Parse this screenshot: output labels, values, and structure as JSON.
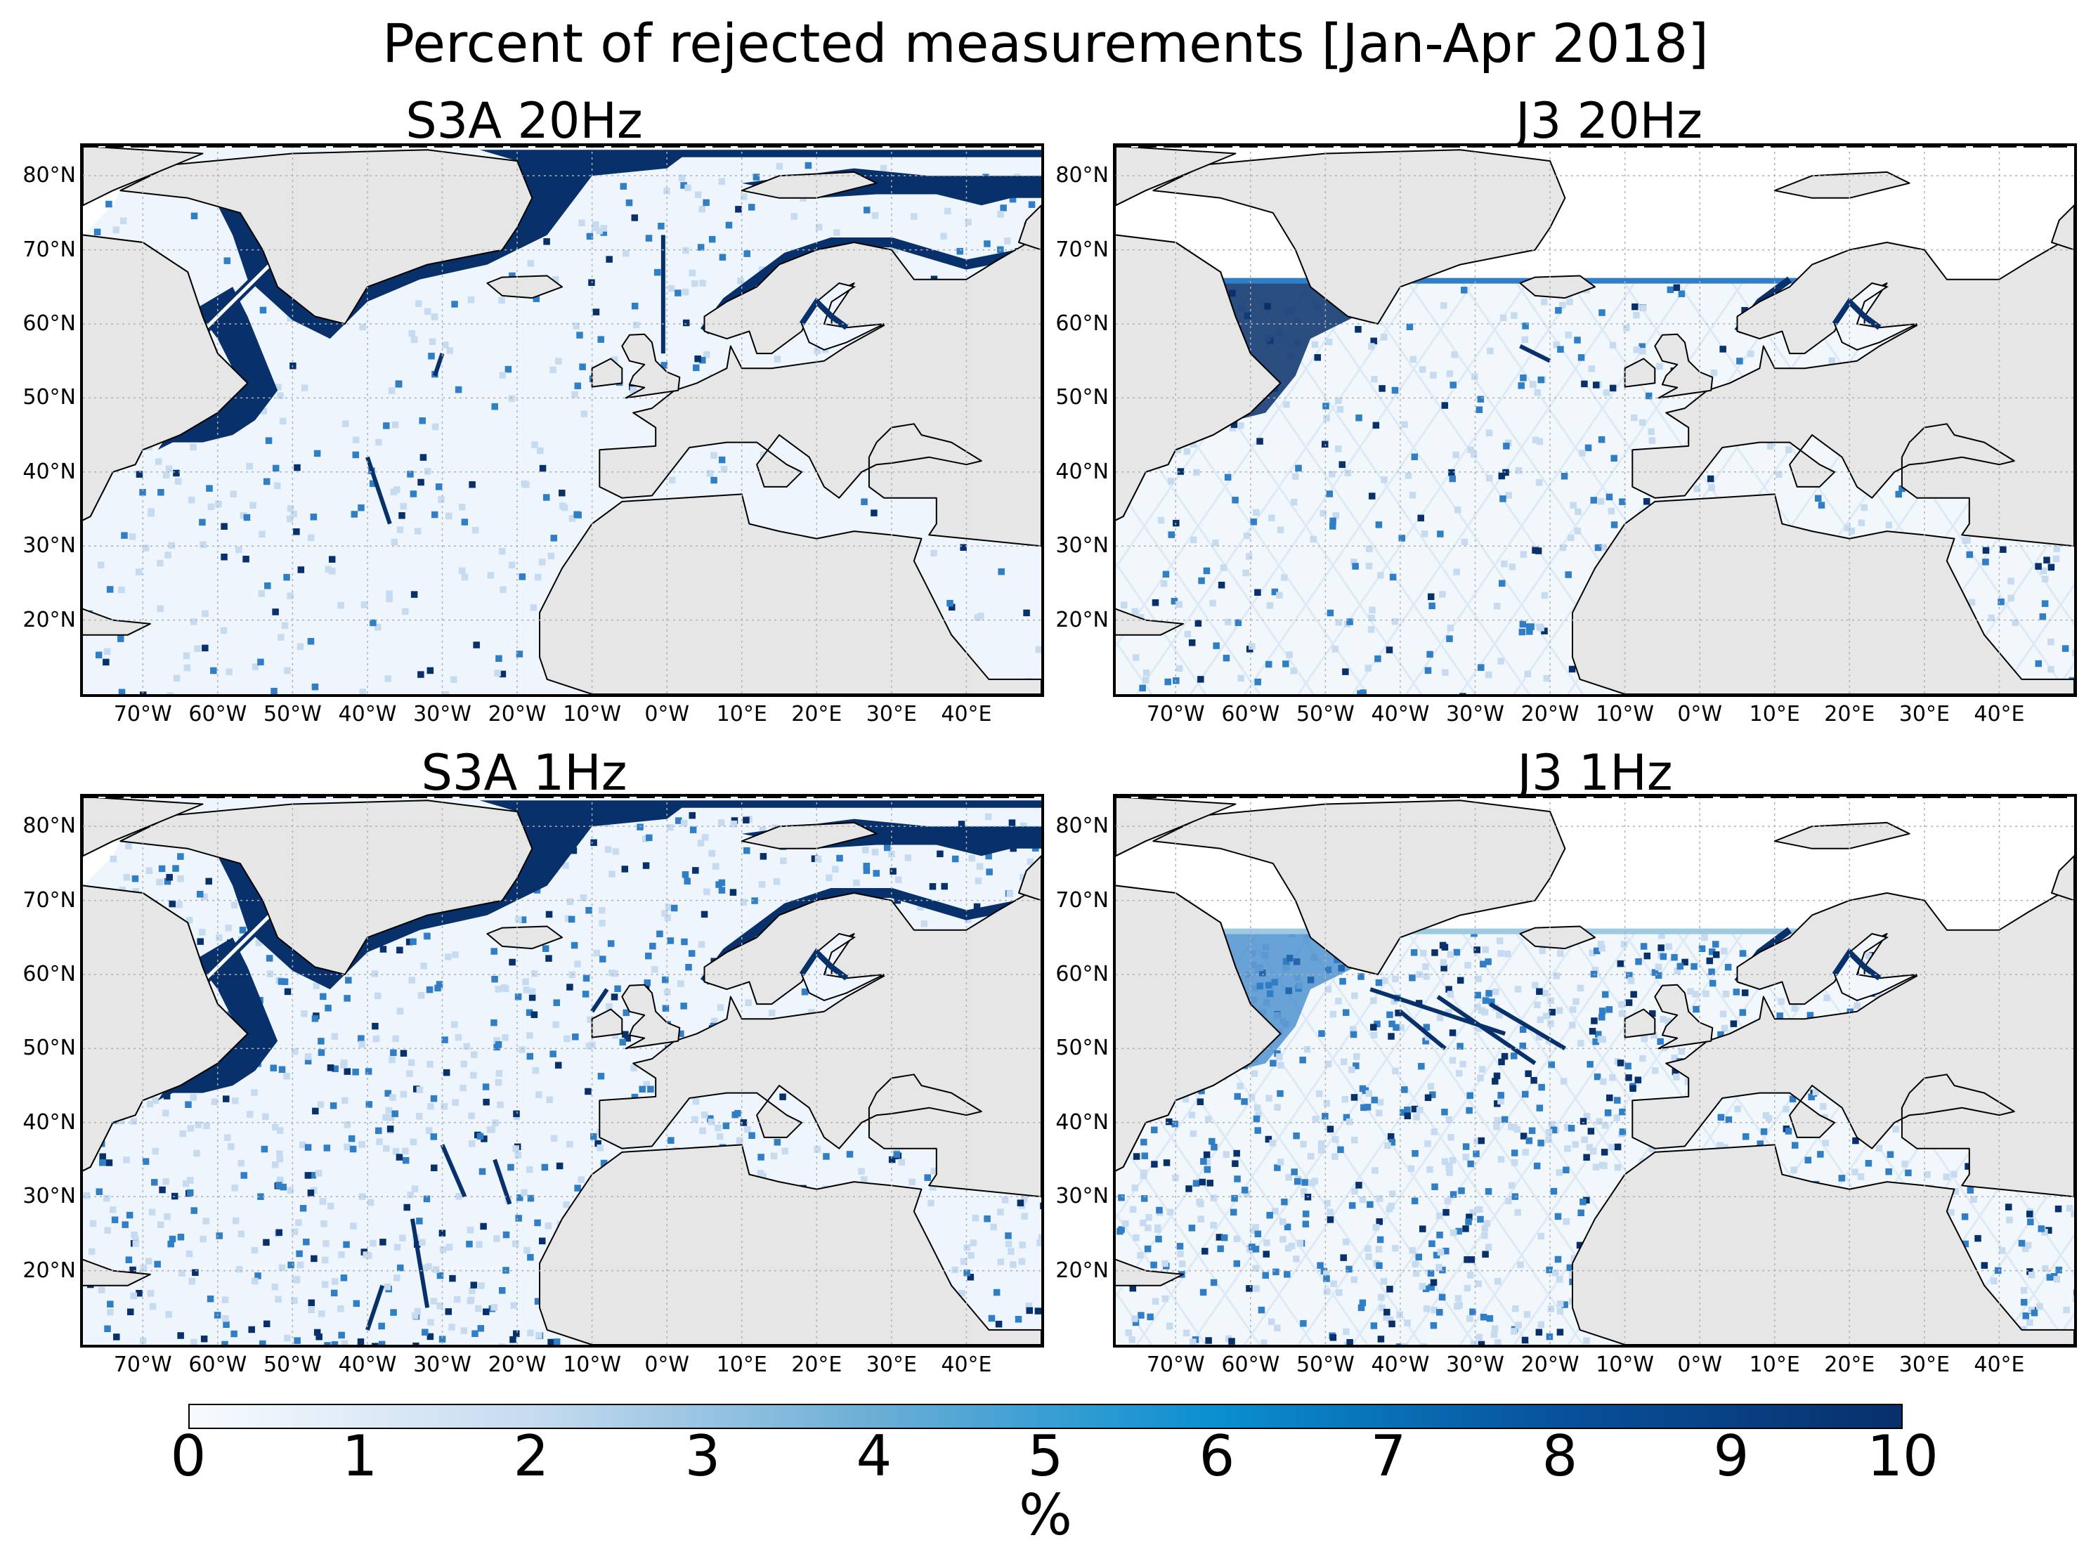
{
  "figure": {
    "title": "Percent of rejected measurements [Jan-Apr 2018]"
  },
  "panels": [
    {
      "title": "S3A 20Hz",
      "lon_labels": [
        "70°W",
        "60°W",
        "50°W",
        "40°W",
        "30°W",
        "20°W",
        "10°W",
        "0°W",
        "10°E",
        "20°E",
        "30°E",
        "40°E"
      ]
    },
    {
      "title": "J3 20Hz",
      "lon_labels": [
        "70°W",
        "60°W",
        "50°W",
        "40°W",
        "30°W",
        "20°W",
        "10°W",
        "0°W",
        "10°E",
        "20°E",
        "30°E",
        "40°E"
      ]
    },
    {
      "title": "S3A 1Hz",
      "lon_labels": [
        "70°W",
        "60°W",
        "50°W",
        "40°W",
        "30°W",
        "20°W",
        "10°W",
        "0°W",
        "10°E",
        "20°E",
        "30°E",
        "40°E"
      ]
    },
    {
      "title": "J3 1Hz",
      "lon_labels": [
        "70°W",
        "60°W",
        "50°W",
        "40°W",
        "30°W",
        "20°W",
        "10°W",
        "0°W",
        "10°E",
        "20°E",
        "30°E",
        "40°E"
      ]
    }
  ],
  "lat_labels": [
    "80°N",
    "70°N",
    "60°N",
    "50°N",
    "40°N",
    "30°N",
    "20°N"
  ],
  "colorbar": {
    "ticks": [
      "0",
      "1",
      "2",
      "3",
      "4",
      "5",
      "6",
      "7",
      "8",
      "9",
      "10"
    ],
    "label": "%",
    "range": [
      0,
      10
    ],
    "colors": [
      "#f7fbff",
      "#c6dbef",
      "#6baed6",
      "#0a8fd0",
      "#08519c",
      "#08306b"
    ]
  },
  "colors": {
    "land": "#e6e6e6",
    "coast": "#000000",
    "high_rejection": "#08306b",
    "mid_rejection": "#2f7ec6",
    "low_rejection": "#eef5fc"
  }
}
